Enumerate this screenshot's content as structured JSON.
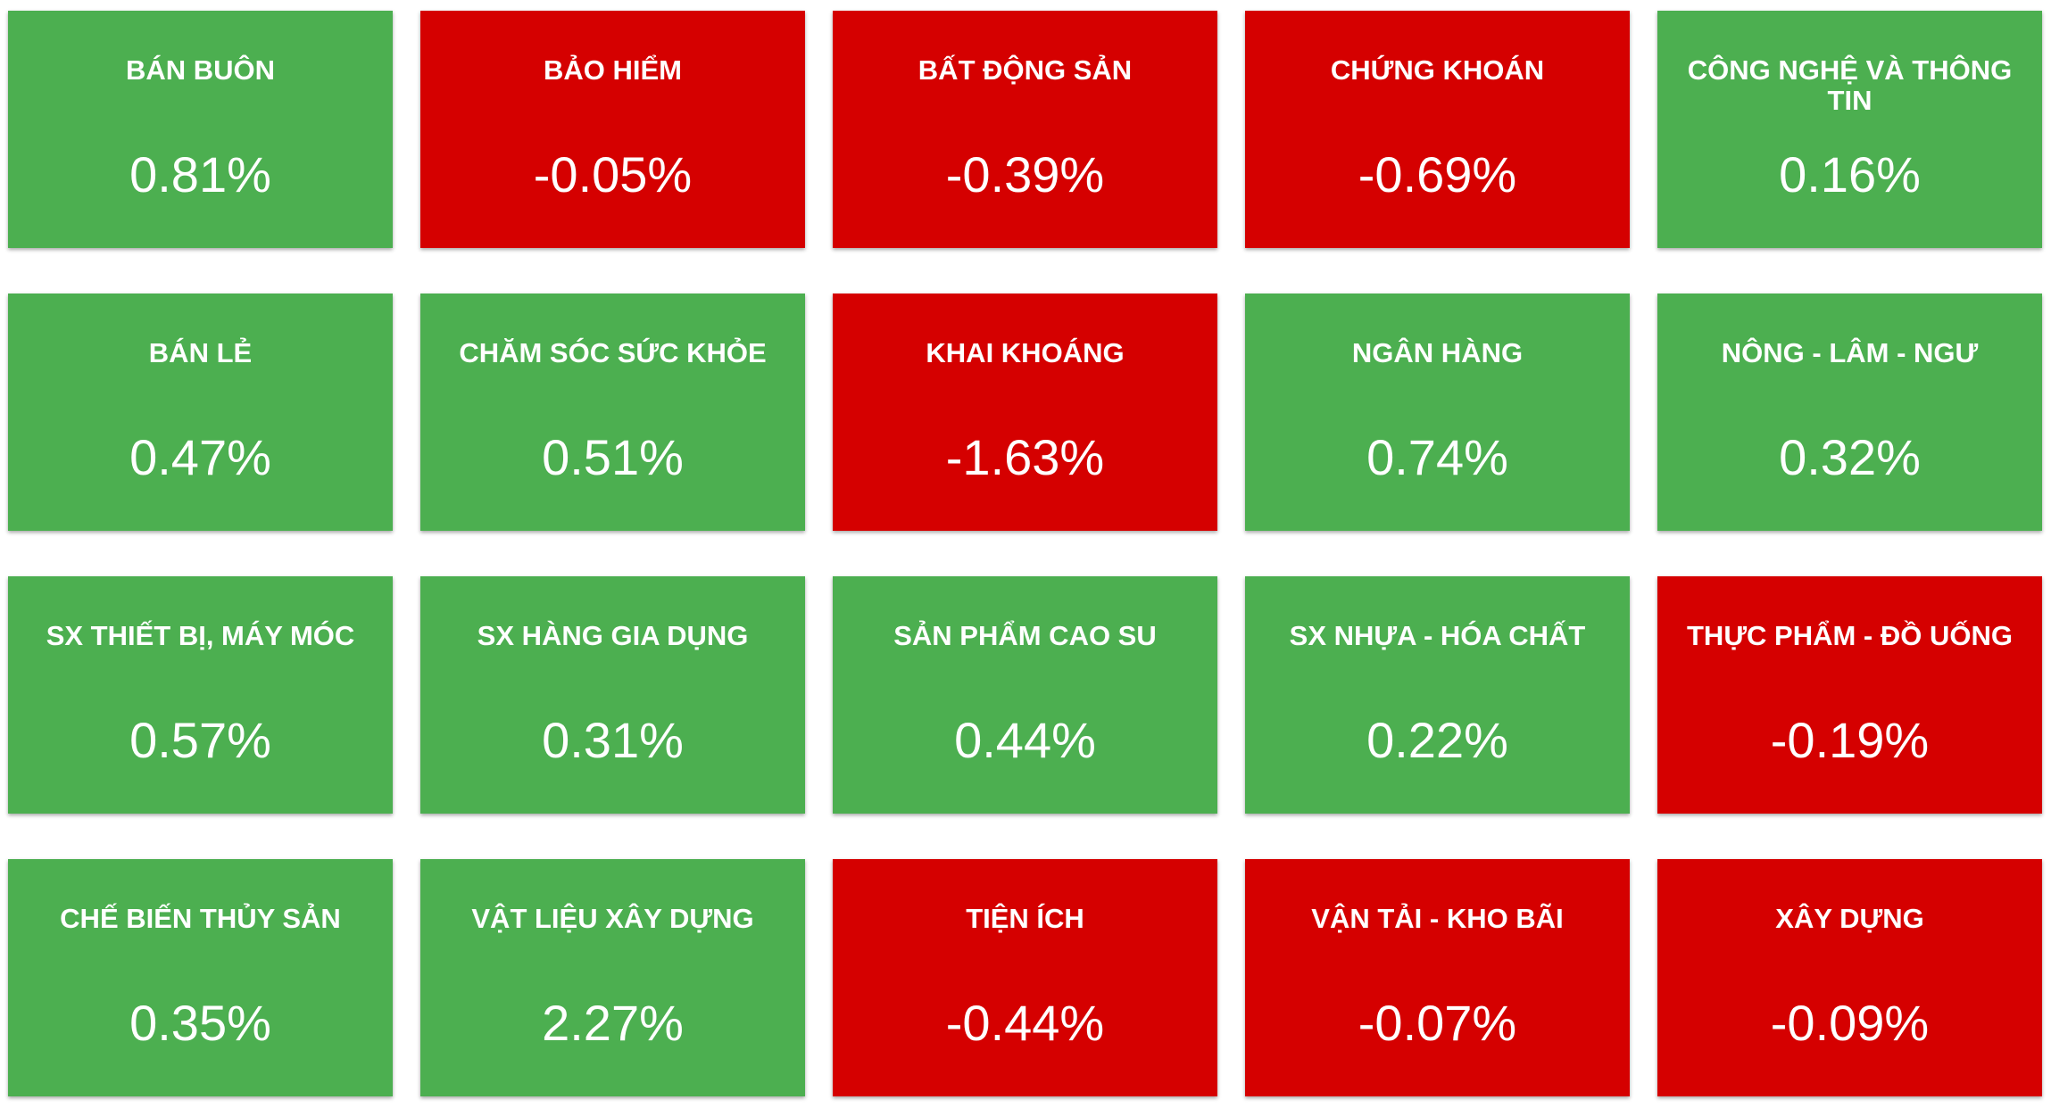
{
  "tiles": [
    {
      "name": "BÁN BUÔN",
      "value": "0.81%",
      "color": "#4caf50"
    },
    {
      "name": "BẢO HIỂM",
      "value": "-0.05%",
      "color": "#d50000"
    },
    {
      "name": "BẤT ĐỘNG SẢN",
      "value": "-0.39%",
      "color": "#d50000"
    },
    {
      "name": "CHỨNG KHOÁN",
      "value": "-0.69%",
      "color": "#d50000"
    },
    {
      "name": "CÔNG NGHỆ VÀ THÔNG TIN",
      "value": "0.16%",
      "color": "#4caf50"
    },
    {
      "name": "BÁN LẺ",
      "value": "0.47%",
      "color": "#4caf50"
    },
    {
      "name": "CHĂM SÓC SỨC KHỎE",
      "value": "0.51%",
      "color": "#4caf50"
    },
    {
      "name": "KHAI KHOÁNG",
      "value": "-1.63%",
      "color": "#d50000"
    },
    {
      "name": "NGÂN HÀNG",
      "value": "0.74%",
      "color": "#4caf50"
    },
    {
      "name": "NÔNG - LÂM - NGƯ",
      "value": "0.32%",
      "color": "#4caf50"
    },
    {
      "name": "SX THIẾT BỊ, MÁY MÓC",
      "value": "0.57%",
      "color": "#4caf50"
    },
    {
      "name": "SX HÀNG GIA DỤNG",
      "value": "0.31%",
      "color": "#4caf50"
    },
    {
      "name": "SẢN PHẨM CAO SU",
      "value": "0.44%",
      "color": "#4caf50"
    },
    {
      "name": "SX NHỰA - HÓA CHẤT",
      "value": "0.22%",
      "color": "#4caf50"
    },
    {
      "name": "THỰC PHẨM - ĐỒ UỐNG",
      "value": "-0.19%",
      "color": "#d50000"
    },
    {
      "name": "CHẾ BIẾN THỦY SẢN",
      "value": "0.35%",
      "color": "#4caf50"
    },
    {
      "name": "VẬT LIỆU XÂY DỰNG",
      "value": "2.27%",
      "color": "#4caf50"
    },
    {
      "name": "TIỆN ÍCH",
      "value": "-0.44%",
      "color": "#d50000"
    },
    {
      "name": "VẬN TẢI - KHO BÃI",
      "value": "-0.07%",
      "color": "#d50000"
    },
    {
      "name": "XÂY DỰNG",
      "value": "-0.09%",
      "color": "#d50000"
    }
  ]
}
